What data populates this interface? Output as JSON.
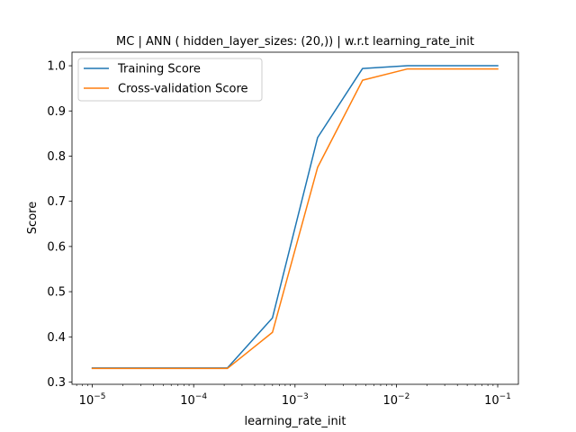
{
  "chart_data": {
    "type": "line",
    "title": "MC | ANN ( hidden_layer_sizes: (20,))  | w.r.t learning_rate_init",
    "xlabel": "learning_rate_init",
    "ylabel": "Score",
    "xscale": "log",
    "xlim": [
      6.3e-06,
      0.16
    ],
    "ylim": [
      0.295,
      1.03
    ],
    "x": [
      1e-05,
      2.78e-05,
      7.74e-05,
      0.000215,
      0.000599,
      0.00167,
      0.00464,
      0.0129,
      0.0359,
      0.1
    ],
    "x_ticks": [
      {
        "value": 1e-05,
        "base": "10",
        "exp": "−5"
      },
      {
        "value": 0.0001,
        "base": "10",
        "exp": "−4"
      },
      {
        "value": 0.001,
        "base": "10",
        "exp": "−3"
      },
      {
        "value": 0.01,
        "base": "10",
        "exp": "−2"
      },
      {
        "value": 0.1,
        "base": "10",
        "exp": "−1"
      }
    ],
    "y_ticks": [
      {
        "value": 0.3,
        "label": "0.3"
      },
      {
        "value": 0.4,
        "label": "0.4"
      },
      {
        "value": 0.5,
        "label": "0.5"
      },
      {
        "value": 0.6,
        "label": "0.6"
      },
      {
        "value": 0.7,
        "label": "0.7"
      },
      {
        "value": 0.8,
        "label": "0.8"
      },
      {
        "value": 0.9,
        "label": "0.9"
      },
      {
        "value": 1.0,
        "label": "1.0"
      }
    ],
    "series": [
      {
        "name": "Training Score",
        "color": "#1f77b4",
        "values": [
          0.331,
          0.331,
          0.331,
          0.331,
          0.442,
          0.841,
          0.994,
          1.0,
          1.0,
          1.0
        ]
      },
      {
        "name": "Cross-validation Score",
        "color": "#ff7f0e",
        "values": [
          0.33,
          0.33,
          0.33,
          0.33,
          0.41,
          0.775,
          0.968,
          0.993,
          0.993,
          0.993
        ]
      }
    ],
    "legend": "top-left",
    "grid": false
  }
}
